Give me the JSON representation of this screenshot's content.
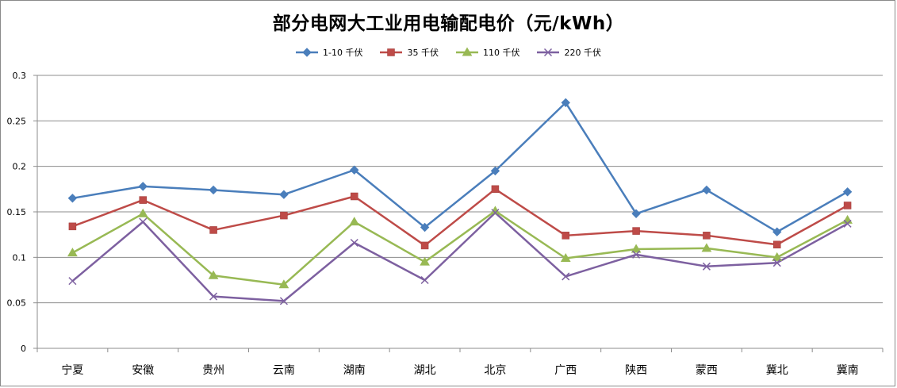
{
  "chart_data": {
    "type": "line",
    "title": "部分电网大工业用电输配电价（元/kWh）",
    "xlabel": "",
    "ylabel": "",
    "categories": [
      "宁夏",
      "安徽",
      "贵州",
      "云南",
      "湖南",
      "湖北",
      "北京",
      "广西",
      "陕西",
      "蒙西",
      "冀北",
      "冀南"
    ],
    "ylim": [
      0,
      0.3
    ],
    "yticks": [
      0,
      0.05,
      0.1,
      0.15,
      0.2,
      0.25,
      0.3
    ],
    "ytick_labels": [
      "0",
      "0.05",
      "0.1",
      "0.15",
      "0.2",
      "0.25",
      "0.3"
    ],
    "grid": "horizontal",
    "legend_position": "top",
    "series": [
      {
        "name": "1-10 千伏",
        "color": "#4a7ebb",
        "marker": "diamond",
        "values": [
          0.165,
          0.178,
          0.174,
          0.169,
          0.196,
          0.133,
          0.195,
          0.27,
          0.148,
          0.174,
          0.128,
          0.172
        ]
      },
      {
        "name": "35 千伏",
        "color": "#be4b48",
        "marker": "square",
        "values": [
          0.134,
          0.163,
          0.13,
          0.146,
          0.167,
          0.113,
          0.175,
          0.124,
          0.129,
          0.124,
          0.114,
          0.157
        ]
      },
      {
        "name": "110 千伏",
        "color": "#98b954",
        "marker": "triangle",
        "values": [
          0.105,
          0.148,
          0.08,
          0.07,
          0.139,
          0.095,
          0.151,
          0.099,
          0.109,
          0.11,
          0.1,
          0.141
        ]
      },
      {
        "name": "220 千伏",
        "color": "#7d60a0",
        "marker": "x",
        "values": [
          0.074,
          0.139,
          0.057,
          0.052,
          0.116,
          0.075,
          0.149,
          0.079,
          0.103,
          0.09,
          0.094,
          0.137
        ]
      }
    ]
  }
}
